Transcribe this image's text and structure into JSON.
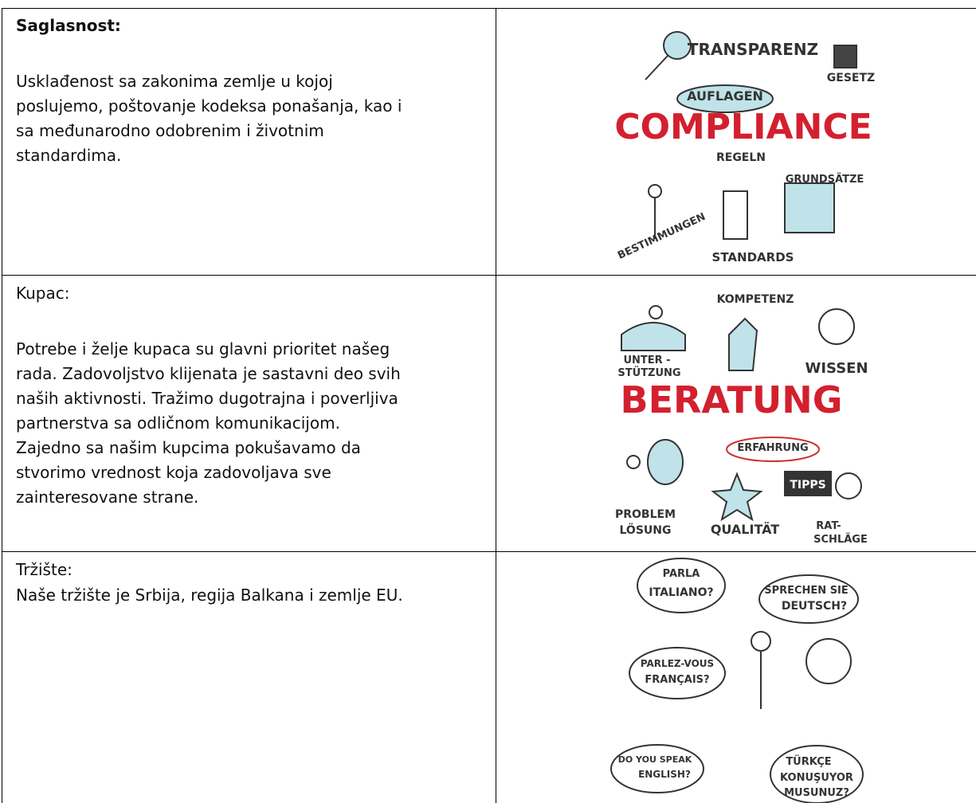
{
  "rows": [
    {
      "heading": "Saglasnost:",
      "lines": [
        "Usklađenost sa zakonima zemlje u kojoj",
        "poslujemo, poštovanje kodeksa ponašanja, kao i",
        "sa međunarodno odobrenim i životnim",
        "standardima."
      ],
      "image": {
        "words": [
          "TRANSPARENZ",
          "GESETZ",
          "AUFLAGEN",
          "COMPLIANCE",
          "REGELN",
          "GRUNDSÄTZE",
          "BESTIMMUNGEN",
          "STANDARDS"
        ]
      }
    },
    {
      "heading": "Kupac:",
      "lines": [
        "Potrebe i želje kupaca su glavni prioritet našeg",
        "rada. Zadovoljstvo klijenata je sastavni deo svih",
        "naših aktivnosti. Tražimo dugotrajna i poverljiva",
        "partnerstva sa odličnom komunikacijom.",
        "Zajedno sa našim kupcima pokušavamo da",
        "stvorimo vrednost koja zadovoljava sve",
        "zainteresovane strane."
      ],
      "image": {
        "words": [
          "KOMPETENZ",
          "UNTER -",
          "STÜTZUNG",
          "WISSEN",
          "BERATUNG",
          "ERFAHRUNG",
          "TIPPS",
          "PROBLEM",
          "LÖSUNG",
          "QUALITÄT",
          "RAT-",
          "SCHLÄGE"
        ]
      }
    },
    {
      "heading": "Tržište:",
      "lines": [
        "Naše tržište je Srbija, regija Balkana i zemlje EU."
      ],
      "image": {
        "words": [
          "PARLA",
          "ITALIANO?",
          "SPRECHEN SIE",
          "DEUTSCH?",
          "PARLEZ-VOUS",
          "FRANÇAIS?",
          "DO YOU SPEAK",
          "ENGLISH?",
          "TÜRKÇE",
          "KONUŞUYOR",
          "MUSUNUZ?"
        ]
      }
    }
  ]
}
